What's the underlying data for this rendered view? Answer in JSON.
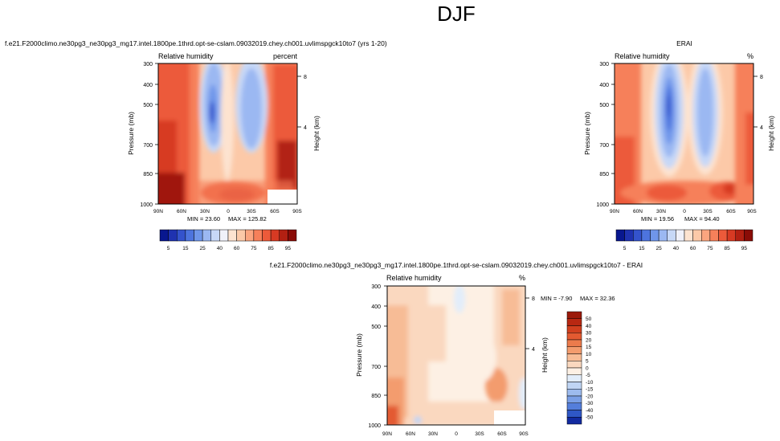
{
  "figure": {
    "title": "DJF"
  },
  "chart_data": [
    {
      "type": "heatmap",
      "id": "model",
      "case_title": "f.e21.F2000climo.ne30pg3_ne30pg3_mg17.intel.1800pe.1thrd.opt-se-cslam.09032019.chey.ch001.uvlimspgck10to7 (yrs 1-20)",
      "variable": "Relative humidity",
      "units": "percent",
      "ylabel": "Pressure (mb)",
      "ylabel_right": "Height (km)",
      "yticks": [
        "300",
        "400",
        "500",
        "700",
        "850",
        "1000"
      ],
      "yticks_right": [
        "8",
        "4"
      ],
      "xticks": [
        "90N",
        "60N",
        "30N",
        "0",
        "30S",
        "60S",
        "90S"
      ],
      "min_text": "MIN =  23.60",
      "max_text": "MAX = 125.82",
      "colorbar_labels": [
        "5",
        "15",
        "25",
        "40",
        "60",
        "75",
        "85",
        "95"
      ]
    },
    {
      "type": "heatmap",
      "id": "obs",
      "case_title": "ERAI",
      "variable": "Relative humidity",
      "units": "%",
      "ylabel": "Pressure (mb)",
      "ylabel_right": "Height (km)",
      "yticks": [
        "300",
        "400",
        "500",
        "700",
        "850",
        "1000"
      ],
      "yticks_right": [
        "8",
        "4"
      ],
      "xticks": [
        "90N",
        "60N",
        "30N",
        "0",
        "30S",
        "60S",
        "90S"
      ],
      "min_text": "MIN =  19.56",
      "max_text": "MAX =  94.40",
      "colorbar_labels": [
        "5",
        "15",
        "25",
        "40",
        "60",
        "75",
        "85",
        "95"
      ]
    },
    {
      "type": "heatmap",
      "id": "diff",
      "case_title": "f.e21.F2000climo.ne30pg3_ne30pg3_mg17.intel.1800pe.1thrd.opt-se-cslam.09032019.chey.ch001.uvlimspgck10to7 - ERAI",
      "variable": "Relative humidity",
      "units": "%",
      "ylabel": "Pressure (mb)",
      "ylabel_right": "Height (km)",
      "yticks": [
        "300",
        "400",
        "500",
        "700",
        "850",
        "1000"
      ],
      "yticks_right": [
        "8",
        "4"
      ],
      "xticks": [
        "90N",
        "60N",
        "30N",
        "0",
        "30S",
        "60S",
        "90S"
      ],
      "min_text": "MIN =  -7.90",
      "max_text": "MAX =  32.36",
      "colorbar_labels": [
        "50",
        "40",
        "30",
        "20",
        "15",
        "10",
        "5",
        "0",
        "-5",
        "-10",
        "-15",
        "-20",
        "-30",
        "-40",
        "-50"
      ]
    }
  ],
  "palettes": {
    "abs": [
      "#08178f",
      "#1f32b0",
      "#3453cc",
      "#4d74de",
      "#6f96ea",
      "#9bb8f2",
      "#c7d8f7",
      "#f0f1fa",
      "#fde3d0",
      "#fcc9a8",
      "#fba57f",
      "#f6805a",
      "#ec5a3a",
      "#d73a23",
      "#b22012",
      "#8a0c07"
    ],
    "diff": [
      "#9b1a0a",
      "#b82812",
      "#d1401f",
      "#e35a31",
      "#ec7b4c",
      "#f39c6e",
      "#f7bc96",
      "#fad8bf",
      "#fdf0e4",
      "#e2edfa",
      "#c0d5f4",
      "#9dbbee",
      "#7a9fe6",
      "#547edb",
      "#2f57c6",
      "#122aa0"
    ]
  }
}
